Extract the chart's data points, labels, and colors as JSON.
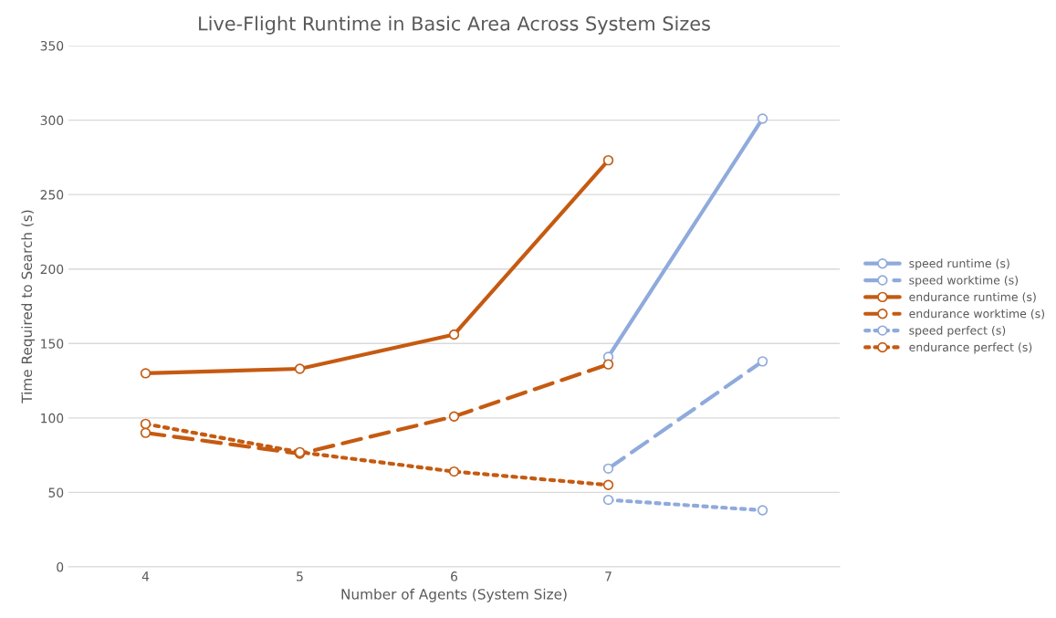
{
  "chart_data": {
    "type": "line",
    "title": "Live-Flight Runtime in Basic Area Across System Sizes",
    "xlabel": "Number of Agents (System Size)",
    "ylabel": "Time Required to Search (s)",
    "categories": [
      "4",
      "5",
      "6",
      "7",
      null
    ],
    "series": [
      {
        "name": "speed runtime (s)",
        "color": "#8faadc",
        "line_style": "solid",
        "values": [
          null,
          null,
          null,
          141,
          301
        ]
      },
      {
        "name": "speed worktime (s)",
        "color": "#8faadc",
        "line_style": "dashed",
        "values": [
          null,
          null,
          null,
          66,
          138
        ]
      },
      {
        "name": "endurance runtime (s)",
        "color": "#c55a11",
        "line_style": "solid",
        "values": [
          130,
          133,
          156,
          273,
          null
        ]
      },
      {
        "name": "endurance worktime (s)",
        "color": "#c55a11",
        "line_style": "dashed",
        "values": [
          90,
          76,
          101,
          136,
          null
        ]
      },
      {
        "name": "speed perfect (s)",
        "color": "#8faadc",
        "line_style": "dotted",
        "values": [
          null,
          null,
          null,
          45,
          38
        ]
      },
      {
        "name": "endurance perfect (s)",
        "color": "#c55a11",
        "line_style": "dotted",
        "values": [
          96,
          77,
          64,
          55,
          null
        ]
      }
    ],
    "ylim": [
      0,
      350
    ],
    "yticks": [
      0,
      50,
      100,
      150,
      200,
      250,
      300,
      350
    ],
    "grid": "y",
    "legend": "right",
    "marker": "circle"
  }
}
